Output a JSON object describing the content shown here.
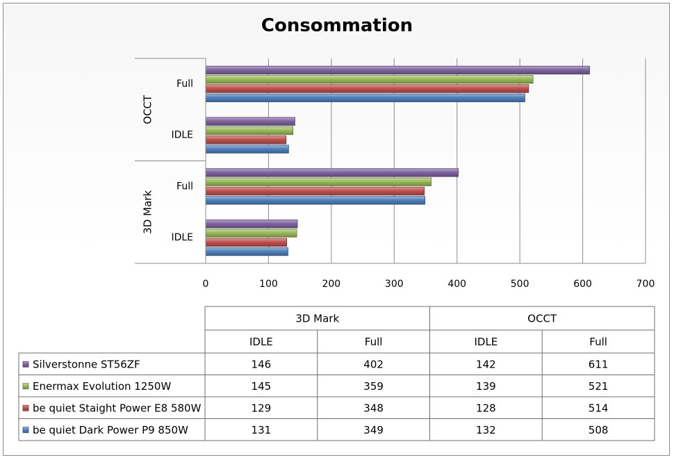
{
  "chart_data": {
    "type": "bar",
    "title": "Consommation",
    "orientation": "horizontal",
    "groups": [
      "3D Mark",
      "OCCT"
    ],
    "subcategories": [
      "IDLE",
      "Full"
    ],
    "categories": [
      "3D Mark IDLE",
      "3D Mark Full",
      "OCCT IDLE",
      "OCCT Full"
    ],
    "xlim": [
      0,
      700
    ],
    "xticks": [
      0,
      100,
      200,
      300,
      400,
      500,
      600,
      700
    ],
    "grid": true,
    "legend_placement": "data-table",
    "series": [
      {
        "name": "Silverstonne ST56ZF",
        "color": "#8064a2",
        "values": [
          146,
          402,
          142,
          611
        ]
      },
      {
        "name": "Enermax Evolution 1250W",
        "color": "#9bbb59",
        "values": [
          145,
          359,
          139,
          521
        ]
      },
      {
        "name": "be quiet Staight Power E8 580W",
        "color": "#c0504d",
        "values": [
          129,
          348,
          128,
          514
        ]
      },
      {
        "name": "be quiet Dark Power P9 850W",
        "color": "#4f81bd",
        "values": [
          131,
          349,
          132,
          508
        ]
      }
    ]
  }
}
